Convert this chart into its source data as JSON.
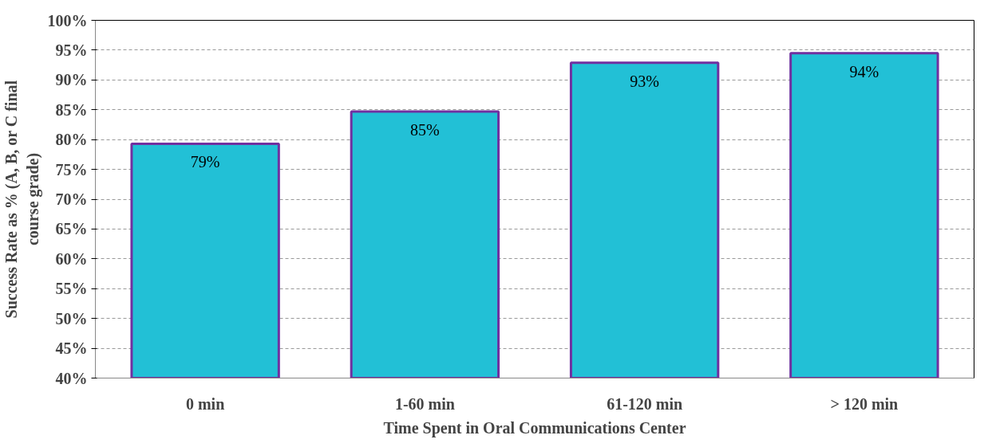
{
  "chart_data": {
    "type": "bar",
    "xlabel": "Time Spent in Oral Communications Center",
    "ylabel": "Success Rate as % (A, B, or C final course grade)",
    "categories": [
      "0 min",
      "1-60 min",
      "61-120 min",
      "> 120 min"
    ],
    "values": [
      79.3,
      84.7,
      92.9,
      94.5
    ],
    "value_labels": [
      "79%",
      "85%",
      "93%",
      "94%"
    ],
    "color": "#22c0d6",
    "ylim": [
      40,
      100
    ],
    "yticks": [
      {
        "value": 40,
        "label": "40%"
      },
      {
        "value": 45,
        "label": "45%"
      },
      {
        "value": 50,
        "label": "50%"
      },
      {
        "value": 55,
        "label": "55%"
      },
      {
        "value": 60,
        "label": "60%"
      },
      {
        "value": 65,
        "label": "65%"
      },
      {
        "value": 70,
        "label": "70%"
      },
      {
        "value": 75,
        "label": "75%"
      },
      {
        "value": 80,
        "label": "80%"
      },
      {
        "value": 85,
        "label": "85%"
      },
      {
        "value": 90,
        "label": "90%"
      },
      {
        "value": 95,
        "label": "95%"
      },
      {
        "value": 100,
        "label": "100%"
      }
    ],
    "grid": "y"
  }
}
